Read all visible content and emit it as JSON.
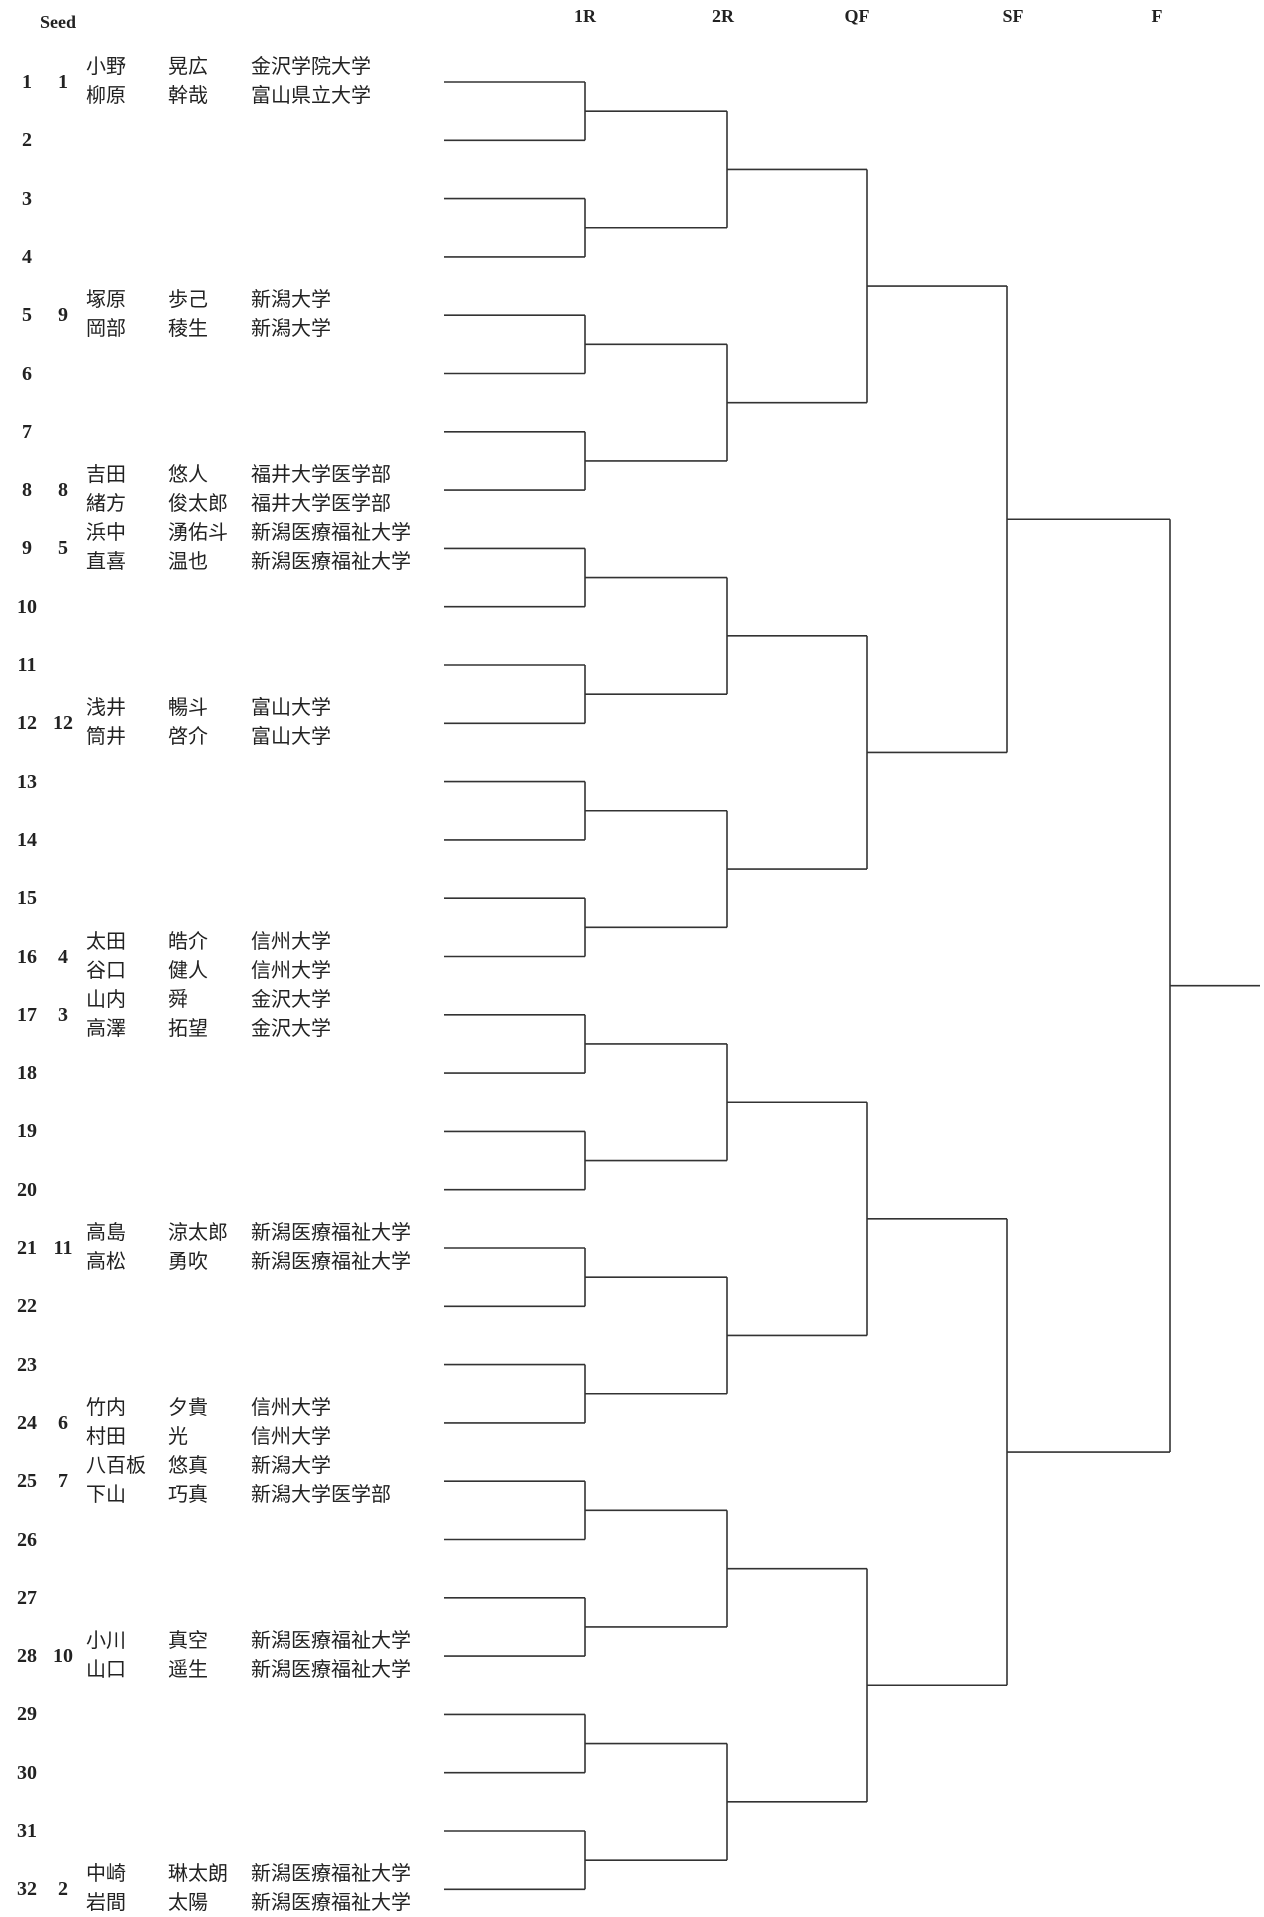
{
  "header": {
    "seed_label": "Seed",
    "rounds": [
      "1R",
      "2R",
      "QF",
      "SF",
      "F"
    ]
  },
  "draw": {
    "lines": 32,
    "entries": [
      {
        "line": 1,
        "seed": "1",
        "players": [
          {
            "surname": "小野",
            "given": "晃広",
            "school": "金沢学院大学"
          },
          {
            "surname": "柳原",
            "given": "幹哉",
            "school": "富山県立大学"
          }
        ]
      },
      {
        "line": 5,
        "seed": "9",
        "players": [
          {
            "surname": "塚原",
            "given": "歩己",
            "school": "新潟大学"
          },
          {
            "surname": "岡部",
            "given": "稜生",
            "school": "新潟大学"
          }
        ]
      },
      {
        "line": 8,
        "seed": "8",
        "players": [
          {
            "surname": "吉田",
            "given": "悠人",
            "school": "福井大学医学部"
          },
          {
            "surname": "緒方",
            "given": "俊太郎",
            "school": "福井大学医学部"
          }
        ]
      },
      {
        "line": 9,
        "seed": "5",
        "players": [
          {
            "surname": "浜中",
            "given": "湧佑斗",
            "school": "新潟医療福祉大学"
          },
          {
            "surname": "直喜",
            "given": "温也",
            "school": "新潟医療福祉大学"
          }
        ]
      },
      {
        "line": 12,
        "seed": "12",
        "players": [
          {
            "surname": "浅井",
            "given": "暢斗",
            "school": "富山大学"
          },
          {
            "surname": "筒井",
            "given": "啓介",
            "school": "富山大学"
          }
        ]
      },
      {
        "line": 16,
        "seed": "4",
        "players": [
          {
            "surname": "太田",
            "given": "皓介",
            "school": "信州大学"
          },
          {
            "surname": "谷口",
            "given": "健人",
            "school": "信州大学"
          }
        ]
      },
      {
        "line": 17,
        "seed": "3",
        "players": [
          {
            "surname": "山内",
            "given": "舜",
            "school": "金沢大学"
          },
          {
            "surname": "高澤",
            "given": "拓望",
            "school": "金沢大学"
          }
        ]
      },
      {
        "line": 21,
        "seed": "11",
        "players": [
          {
            "surname": "高島",
            "given": "涼太郎",
            "school": "新潟医療福祉大学"
          },
          {
            "surname": "高松",
            "given": "勇吹",
            "school": "新潟医療福祉大学"
          }
        ]
      },
      {
        "line": 24,
        "seed": "6",
        "players": [
          {
            "surname": "竹内",
            "given": "夕貴",
            "school": "信州大学"
          },
          {
            "surname": "村田",
            "given": "光",
            "school": "信州大学"
          }
        ]
      },
      {
        "line": 25,
        "seed": "7",
        "players": [
          {
            "surname": "八百板",
            "given": "悠真",
            "school": "新潟大学"
          },
          {
            "surname": "下山",
            "given": "巧真",
            "school": "新潟大学医学部"
          }
        ]
      },
      {
        "line": 28,
        "seed": "10",
        "players": [
          {
            "surname": "小川",
            "given": "真空",
            "school": "新潟医療福祉大学"
          },
          {
            "surname": "山口",
            "given": "遥生",
            "school": "新潟医療福祉大学"
          }
        ]
      },
      {
        "line": 32,
        "seed": "2",
        "players": [
          {
            "surname": "中崎",
            "given": "琳太朗",
            "school": "新潟医療福祉大学"
          },
          {
            "surname": "岩間",
            "given": "太陽",
            "school": "新潟医療福祉大学"
          }
        ]
      }
    ]
  },
  "colors": {
    "line": "#333333",
    "text": "#222222"
  }
}
